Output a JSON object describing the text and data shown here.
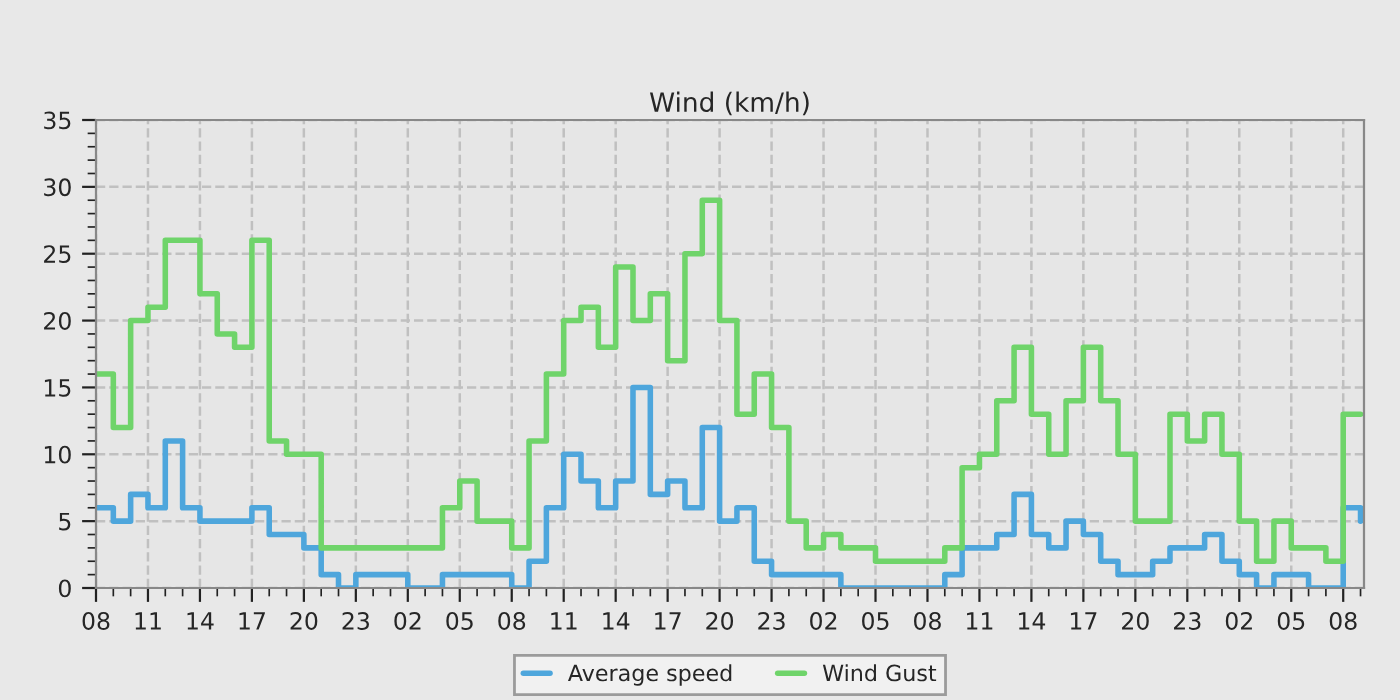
{
  "chart_data": {
    "type": "step",
    "title": "Wind (km/h)",
    "categories": [
      "08",
      null,
      null,
      "11",
      null,
      null,
      "14",
      null,
      null,
      "17",
      null,
      null,
      "20",
      null,
      null,
      "23",
      null,
      null,
      "02",
      null,
      null,
      "05",
      null,
      null,
      "08",
      null,
      null,
      "11",
      null,
      null,
      "14",
      null,
      null,
      "17",
      null,
      null,
      "20",
      null,
      null,
      "23",
      null,
      null,
      "02",
      null,
      null,
      "05",
      null,
      null,
      "08",
      null,
      null,
      "11",
      null,
      null,
      "14",
      null,
      null,
      "17",
      null,
      null,
      "20",
      null,
      null,
      "23",
      null,
      null,
      "02",
      null,
      null,
      "05",
      null,
      null,
      "08",
      null
    ],
    "series": [
      {
        "name": "Average speed",
        "color": "#4ea6dc",
        "values": [
          6,
          5,
          7,
          6,
          11,
          6,
          5,
          5,
          5,
          6,
          4,
          4,
          3,
          1,
          0,
          1,
          1,
          1,
          0,
          0,
          1,
          1,
          1,
          1,
          0,
          2,
          6,
          10,
          8,
          6,
          8,
          15,
          7,
          8,
          6,
          12,
          5,
          6,
          2,
          1,
          1,
          1,
          1,
          0,
          0,
          0,
          0,
          0,
          0,
          1,
          3,
          3,
          4,
          7,
          4,
          3,
          5,
          4,
          2,
          1,
          1,
          2,
          3,
          3,
          4,
          2,
          1,
          0,
          1,
          1,
          0,
          0,
          6,
          5
        ]
      },
      {
        "name": "Wind Gust",
        "color": "#6fd46a",
        "values": [
          16,
          12,
          20,
          21,
          26,
          26,
          22,
          19,
          18,
          26,
          11,
          10,
          10,
          3,
          3,
          3,
          3,
          3,
          3,
          3,
          6,
          8,
          5,
          5,
          3,
          11,
          16,
          20,
          21,
          18,
          24,
          20,
          22,
          17,
          25,
          29,
          20,
          13,
          16,
          12,
          5,
          3,
          4,
          3,
          3,
          2,
          2,
          2,
          2,
          3,
          9,
          10,
          14,
          18,
          13,
          10,
          14,
          18,
          14,
          10,
          5,
          5,
          13,
          11,
          13,
          10,
          5,
          2,
          5,
          3,
          3,
          2,
          13,
          13
        ]
      }
    ],
    "ylim": [
      0,
      35
    ],
    "yticks": [
      0,
      5,
      10,
      15,
      20,
      25,
      30,
      35,
      {
        "value": 1,
        "label": null
      },
      {
        "value": 2,
        "label": null
      },
      {
        "value": 3,
        "label": null
      },
      {
        "value": 4,
        "label": null
      },
      {
        "value": 6,
        "label": null
      },
      {
        "value": 7,
        "label": null
      },
      {
        "value": 8,
        "label": null
      },
      {
        "value": 9,
        "label": null
      },
      {
        "value": 11,
        "label": null
      },
      {
        "value": 12,
        "label": null
      },
      {
        "value": 13,
        "label": null
      },
      {
        "value": 14,
        "label": null
      },
      {
        "value": 16,
        "label": null
      },
      {
        "value": 17,
        "label": null
      },
      {
        "value": 18,
        "label": null
      },
      {
        "value": 19,
        "label": null
      },
      {
        "value": 21,
        "label": null
      },
      {
        "value": 22,
        "label": null
      },
      {
        "value": 23,
        "label": null
      },
      {
        "value": 24,
        "label": null
      },
      {
        "value": 26,
        "label": null
      },
      {
        "value": 27,
        "label": null
      },
      {
        "value": 28,
        "label": null
      },
      {
        "value": 29,
        "label": null
      },
      {
        "value": 31,
        "label": null
      },
      {
        "value": 32,
        "label": null
      },
      {
        "value": 33,
        "label": null
      },
      {
        "value": 34,
        "label": null
      }
    ],
    "grid": true,
    "legend": "bottom",
    "line_style": "solid",
    "marker": "none"
  }
}
